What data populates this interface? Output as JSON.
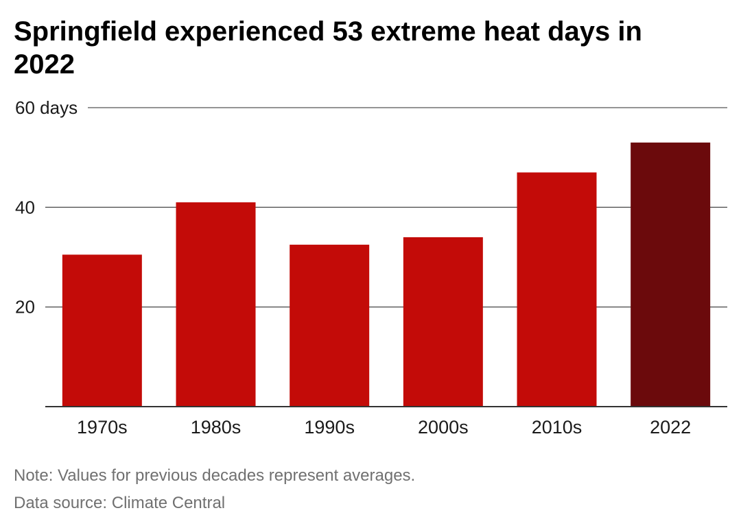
{
  "title": "Springfield experienced 53 extreme heat days in 2022",
  "note": "Note: Values for previous decades represent averages.",
  "source": "Data source: Climate Central",
  "chart_data": {
    "type": "bar",
    "title": "Springfield experienced 53 extreme heat days in 2022",
    "xlabel": "",
    "ylabel": "",
    "categories": [
      "1970s",
      "1980s",
      "1990s",
      "2000s",
      "2010s",
      "2022"
    ],
    "values": [
      30.5,
      41,
      32.5,
      34,
      47,
      53
    ],
    "ylim": [
      0,
      60
    ],
    "yticks": [
      {
        "value": 20,
        "label": "20"
      },
      {
        "value": 40,
        "label": "40"
      },
      {
        "value": 60,
        "label": "60 days"
      }
    ],
    "grid": true,
    "legend": "none",
    "colors": [
      "#c30b08",
      "#c30b08",
      "#c30b08",
      "#c30b08",
      "#c30b08",
      "#6b0a0c"
    ]
  }
}
